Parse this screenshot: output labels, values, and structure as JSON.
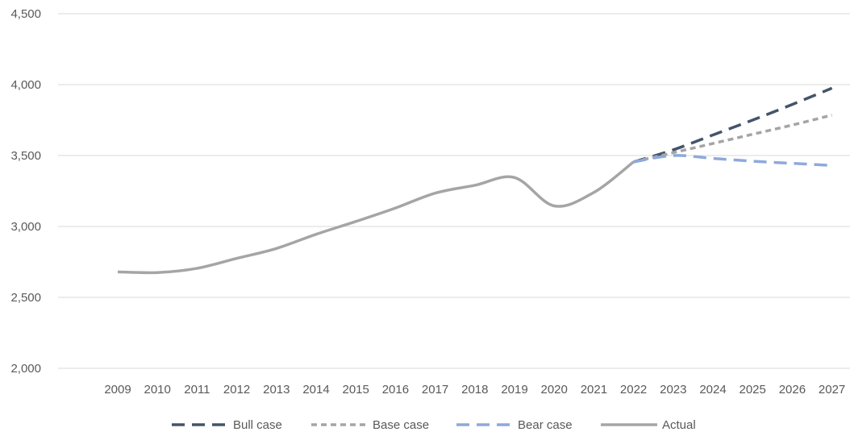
{
  "chart_data": {
    "type": "line",
    "title": "",
    "xlabel": "",
    "ylabel": "",
    "ylim": [
      2000,
      4500
    ],
    "yticks": [
      2000,
      2500,
      3000,
      3500,
      4000,
      4500
    ],
    "ytick_labels": [
      "2,000",
      "2,500",
      "3,000",
      "3,500",
      "4,000",
      "4,500"
    ],
    "categories": [
      "2009",
      "2010",
      "2011",
      "2012",
      "2013",
      "2014",
      "2015",
      "2016",
      "2017",
      "2018",
      "2019",
      "2020",
      "2021",
      "2022",
      "2023",
      "2024",
      "2025",
      "2026",
      "2027"
    ],
    "grid": "horizontal",
    "legend_position": "bottom",
    "series": [
      {
        "name": "Bull case",
        "color": "#44546A",
        "dash": "dash",
        "values": [
          null,
          null,
          null,
          null,
          null,
          null,
          null,
          null,
          null,
          null,
          null,
          null,
          null,
          3455,
          3540,
          3645,
          3750,
          3860,
          3975
        ]
      },
      {
        "name": "Base case",
        "color": "#A5A5A5",
        "dash": "dot",
        "values": [
          null,
          null,
          null,
          null,
          null,
          null,
          null,
          null,
          null,
          null,
          null,
          null,
          null,
          3455,
          3520,
          3585,
          3650,
          3715,
          3785
        ]
      },
      {
        "name": "Bear case",
        "color": "#8EA9DB",
        "dash": "dash",
        "values": [
          null,
          null,
          null,
          null,
          null,
          null,
          null,
          null,
          null,
          null,
          null,
          null,
          null,
          3455,
          3500,
          3480,
          3460,
          3445,
          3430
        ]
      },
      {
        "name": "Actual",
        "color": "#A5A5A5",
        "dash": "solid",
        "values": [
          2680,
          2675,
          2705,
          2775,
          2845,
          2945,
          3035,
          3130,
          3235,
          3290,
          3345,
          3145,
          3240,
          3455,
          null,
          null,
          null,
          null,
          null
        ]
      }
    ]
  }
}
